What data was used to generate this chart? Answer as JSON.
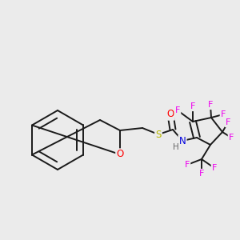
{
  "background_color": "#ebebeb",
  "bond_color": "#1a1a1a",
  "bond_width": 1.4,
  "atom_colors": {
    "O": "#ff0000",
    "S": "#b8b800",
    "N": "#0000dd",
    "F": "#ee00ee",
    "H": "#666666",
    "C": "#1a1a1a"
  },
  "font_size_atom": 8.5,
  "font_size_F": 8.0,
  "font_size_H": 7.5
}
